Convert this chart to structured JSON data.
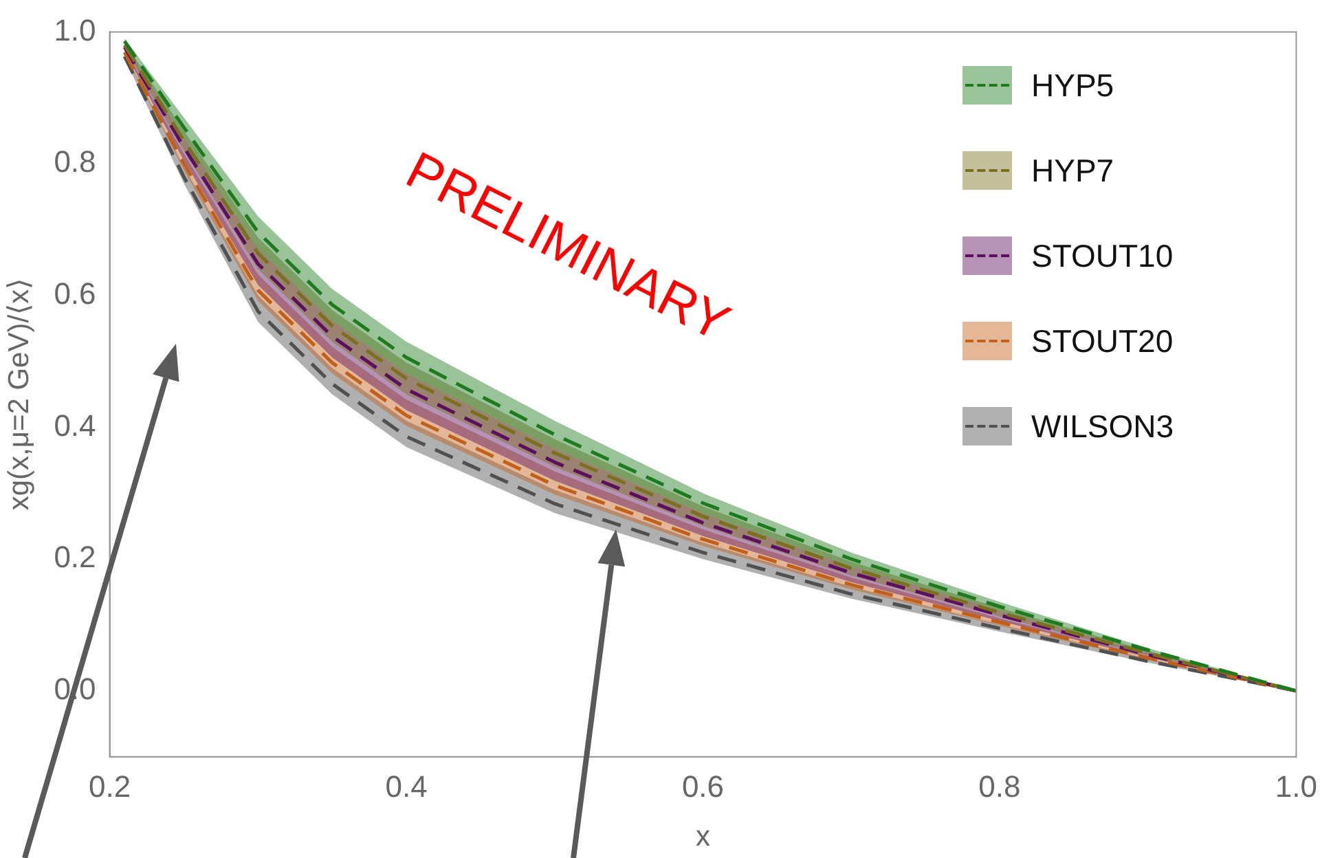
{
  "chart_data": {
    "type": "line",
    "xlabel": "x",
    "ylabel": "xg(x,μ=2 GeV)/⟨x⟩",
    "x": [
      0.21,
      0.25,
      0.3,
      0.35,
      0.4,
      0.5,
      0.6,
      0.7,
      0.8,
      0.9,
      1.0
    ],
    "series": [
      {
        "name": "HYP5",
        "color": "#1e7a1e",
        "values": [
          0.986,
          0.855,
          0.696,
          0.586,
          0.506,
          0.389,
          0.285,
          0.2,
          0.128,
          0.062,
          0
        ],
        "lower": [
          0.981,
          0.84,
          0.672,
          0.562,
          0.482,
          0.368,
          0.27,
          0.189,
          0.122,
          0.058,
          0
        ],
        "upper": [
          0.99,
          0.87,
          0.72,
          0.61,
          0.53,
          0.41,
          0.3,
          0.21,
          0.135,
          0.065,
          0
        ]
      },
      {
        "name": "HYP7",
        "color": "#7a7020",
        "values": [
          0.98,
          0.835,
          0.664,
          0.554,
          0.474,
          0.361,
          0.265,
          0.186,
          0.119,
          0.057,
          0
        ],
        "lower": [
          0.975,
          0.82,
          0.64,
          0.53,
          0.45,
          0.34,
          0.25,
          0.175,
          0.113,
          0.054,
          0
        ],
        "upper": [
          0.984,
          0.85,
          0.688,
          0.578,
          0.498,
          0.382,
          0.28,
          0.196,
          0.126,
          0.061,
          0
        ]
      },
      {
        "name": "STOUT10",
        "color": "#5c0f5c",
        "values": [
          0.977,
          0.825,
          0.648,
          0.538,
          0.458,
          0.347,
          0.255,
          0.179,
          0.115,
          0.055,
          0
        ],
        "lower": [
          0.97,
          0.805,
          0.616,
          0.506,
          0.426,
          0.319,
          0.235,
          0.165,
          0.106,
          0.051,
          0
        ],
        "upper": [
          0.981,
          0.84,
          0.672,
          0.562,
          0.482,
          0.368,
          0.27,
          0.189,
          0.122,
          0.058,
          0
        ]
      },
      {
        "name": "STOUT20",
        "color": "#c0601a",
        "values": [
          0.969,
          0.8,
          0.608,
          0.498,
          0.418,
          0.312,
          0.23,
          0.161,
          0.104,
          0.05,
          0
        ],
        "lower": [
          0.966,
          0.79,
          0.592,
          0.482,
          0.402,
          0.298,
          0.22,
          0.154,
          0.099,
          0.047,
          0
        ],
        "upper": [
          0.974,
          0.815,
          0.632,
          0.522,
          0.442,
          0.333,
          0.245,
          0.172,
          0.11,
          0.053,
          0
        ]
      },
      {
        "name": "WILSON3",
        "color": "#505050",
        "values": [
          0.963,
          0.78,
          0.576,
          0.466,
          0.386,
          0.284,
          0.21,
          0.147,
          0.095,
          0.045,
          0
        ],
        "lower": [
          0.96,
          0.77,
          0.56,
          0.45,
          0.37,
          0.27,
          0.2,
          0.14,
          0.09,
          0.043,
          0
        ],
        "upper": [
          0.968,
          0.795,
          0.6,
          0.49,
          0.41,
          0.305,
          0.225,
          0.158,
          0.101,
          0.049,
          0
        ]
      }
    ],
    "xlim": [
      0.2,
      1.0
    ],
    "xticks": [
      {
        "value": 0.2,
        "label": "0.2"
      },
      {
        "value": 0.4,
        "label": "0.4"
      },
      {
        "value": 0.6,
        "label": "0.6"
      },
      {
        "value": 0.8,
        "label": "0.8"
      },
      {
        "value": 1.0,
        "label": "1.0"
      }
    ],
    "ylim": [
      -0.1,
      1.0
    ],
    "yticks": [
      {
        "value": 0,
        "label": "0.0"
      },
      {
        "value": 0.2,
        "label": "0.2"
      },
      {
        "value": 0.4,
        "label": "0.4"
      },
      {
        "value": 0.6,
        "label": "0.6"
      },
      {
        "value": 0.8,
        "label": "0.8"
      },
      {
        "value": 1.0,
        "label": "1.0"
      }
    ],
    "annotations": [
      "PRELIMINARY"
    ],
    "legend": "top right",
    "grid": false,
    "line_style": "dashed",
    "marker": "none"
  }
}
